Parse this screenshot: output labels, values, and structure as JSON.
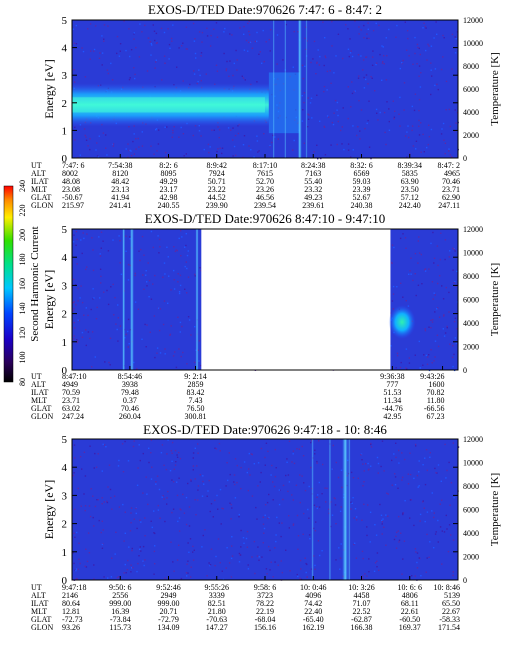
{
  "colorbar": {
    "label": "Second Harmonic Current",
    "ticks": [
      "80",
      "100",
      "120",
      "140",
      "160",
      "180",
      "200",
      "220",
      "240"
    ]
  },
  "chart_data": [
    {
      "type": "heatmap",
      "title": "EXOS-D/TED   Date:970626  7:47: 6 - 8:47: 2",
      "ylabel": "Energy [eV]",
      "ylabel_right": "Temperature [K]",
      "ylim": [
        0,
        5
      ],
      "yticks": [
        "0",
        "1",
        "2",
        "3",
        "4",
        "5"
      ],
      "ylim_right": [
        0,
        12000
      ],
      "yticks_right": [
        "0",
        "2000",
        "4000",
        "6000",
        "8000",
        "10000",
        "12000"
      ],
      "row_labels": [
        "UT",
        "ALT",
        "ILAT",
        "MLT",
        "GLAT",
        "GLON"
      ],
      "columns": [
        [
          "7:47: 6",
          "8002",
          "48.08",
          "23.08",
          "-50.67",
          "215.97"
        ],
        [
          "7:54:38",
          "8120",
          "48.42",
          "23.13",
          "41.94",
          "241.41"
        ],
        [
          "8:2: 6",
          "8095",
          "49.29",
          "23.17",
          "42.98",
          "240.55"
        ],
        [
          "8:9:42",
          "7924",
          "50.71",
          "23.22",
          "44.52",
          "239.90"
        ],
        [
          "8:17:10",
          "7615",
          "52.70",
          "23.26",
          "46.56",
          "239.54"
        ],
        [
          "8:24:38",
          "7163",
          "55.40",
          "23.32",
          "49.23",
          "239.61"
        ],
        [
          "8:32: 6",
          "6569",
          "59.03",
          "23.39",
          "52.67",
          "240.38"
        ],
        [
          "8:39:34",
          "5835",
          "63.90",
          "23.50",
          "57.12",
          "242.40"
        ],
        [
          "8:47: 2",
          "4965",
          "70.46",
          "23.71",
          "62.90",
          "247.11"
        ]
      ],
      "data_gaps": []
    },
    {
      "type": "heatmap",
      "title": "EXOS-D/TED   Date:970626  8:47:10 - 9:47:10",
      "ylabel": "Energy [eV]",
      "ylabel_right": "Temperature [K]",
      "ylim": [
        0,
        5
      ],
      "yticks": [
        "0",
        "1",
        "2",
        "3",
        "4",
        "5"
      ],
      "ylim_right": [
        0,
        12000
      ],
      "yticks_right": [
        "0",
        "2000",
        "4000",
        "6000",
        "8000",
        "10000",
        "12000"
      ],
      "row_labels": [
        "UT",
        "ALT",
        "ILAT",
        "MLT",
        "GLAT",
        "GLON"
      ],
      "columns": [
        [
          "8:47:10",
          "4949",
          "70.59",
          "23.71",
          "63.02",
          "247.24"
        ],
        [
          "8:54:46",
          "3938",
          "79.48",
          "0.37",
          "70.46",
          "260.04"
        ],
        [
          "9: 2:14",
          "2859",
          "83.42",
          "7.43",
          "76.50",
          "300.81"
        ],
        [
          "9:36:38",
          "777",
          "51.53",
          "11.34",
          "-44.76",
          "42.95"
        ],
        [
          "9:43:26",
          "1600",
          "70.82",
          "11.80",
          "-66.56",
          "67.23"
        ]
      ],
      "data_gaps": [
        [
          "9: 2:14",
          "9:36:38"
        ]
      ]
    },
    {
      "type": "heatmap",
      "title": "EXOS-D/TED   Date:970626  9:47:18 - 10: 8:46",
      "ylabel": "Energy [eV]",
      "ylabel_right": "Temperature [K]",
      "ylim": [
        0,
        5
      ],
      "yticks": [
        "0",
        "1",
        "2",
        "3",
        "4",
        "5"
      ],
      "ylim_right": [
        0,
        12000
      ],
      "yticks_right": [
        "0",
        "2000",
        "4000",
        "6000",
        "8000",
        "10000",
        "12000"
      ],
      "row_labels": [
        "UT",
        "ALT",
        "ILAT",
        "MLT",
        "GLAT",
        "GLON"
      ],
      "columns": [
        [
          "9:47:18",
          "2146",
          "80.64",
          "12.81",
          "-72.73",
          "93.26"
        ],
        [
          "9:50: 6",
          "2556",
          "999.00",
          "16.39",
          "-73.84",
          "115.73"
        ],
        [
          "9:52:46",
          "2949",
          "999.00",
          "20.71",
          "-72.79",
          "134.09"
        ],
        [
          "9:55:26",
          "3339",
          "82.51",
          "21.80",
          "-70.63",
          "147.27"
        ],
        [
          "9:58: 6",
          "3723",
          "78.22",
          "22.19",
          "-68.04",
          "156.16"
        ],
        [
          "10: 0:46",
          "4096",
          "74.42",
          "22.40",
          "-65.40",
          "162.19"
        ],
        [
          "10: 3:26",
          "4458",
          "71.07",
          "22.52",
          "-62.87",
          "166.38"
        ],
        [
          "10: 6: 6",
          "4806",
          "68.11",
          "22.61",
          "-60.50",
          "169.37"
        ],
        [
          "10: 8:46",
          "5139",
          "65.50",
          "22.67",
          "-58.33",
          "171.54"
        ]
      ],
      "data_gaps": []
    }
  ]
}
